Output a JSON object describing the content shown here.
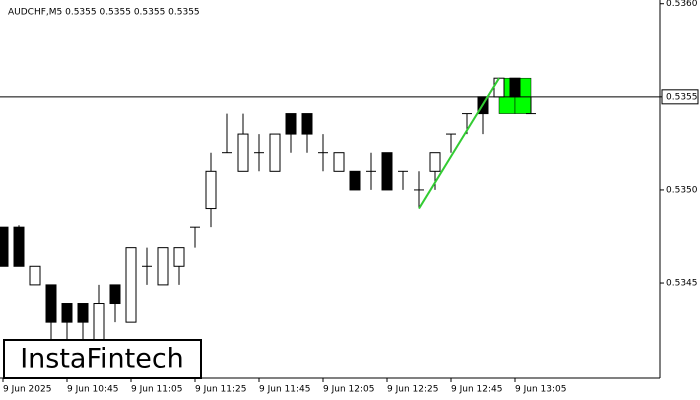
{
  "chart_data": {
    "type": "candlestick",
    "title": "AUDCHF,M5  0.5355 0.5355 0.5355 0.5355",
    "open": [
      0.5348,
      0.5348,
      0.53449,
      0.53449,
      0.53439,
      0.53439,
      0.53419,
      0.53449,
      0.53429,
      0.53459,
      0.53449,
      0.53459,
      0.5348,
      0.5349,
      0.5352,
      0.5351,
      0.5352,
      0.5351,
      0.53541,
      0.53541,
      0.5352,
      0.5351,
      0.5351,
      0.5351,
      0.5352,
      0.5351,
      0.535,
      0.5351,
      0.5353,
      0.53541,
      0.5355,
      0.5355,
      0.5356,
      0.53541
    ],
    "high": [
      0.5348,
      0.53481,
      0.53459,
      0.53449,
      0.53439,
      0.53439,
      0.53449,
      0.53449,
      0.53469,
      0.53469,
      0.53469,
      0.53469,
      0.5348,
      0.5352,
      0.53541,
      0.53541,
      0.5353,
      0.5353,
      0.53541,
      0.53541,
      0.5353,
      0.5352,
      0.5351,
      0.5352,
      0.5352,
      0.5351,
      0.5351,
      0.5352,
      0.5353,
      0.53541,
      0.5355,
      0.5356,
      0.5356,
      0.5355
    ],
    "low": [
      0.53459,
      0.53459,
      0.53449,
      0.53419,
      0.53419,
      0.53419,
      0.53419,
      0.53429,
      0.53429,
      0.53449,
      0.53449,
      0.53449,
      0.53469,
      0.5348,
      0.5352,
      0.5351,
      0.5351,
      0.5351,
      0.5352,
      0.5352,
      0.5351,
      0.5351,
      0.535,
      0.535,
      0.535,
      0.535,
      0.5349,
      0.535,
      0.5352,
      0.5353,
      0.5353,
      0.5355,
      0.5355,
      0.53541
    ],
    "close": [
      0.53459,
      0.53459,
      0.53459,
      0.53429,
      0.53429,
      0.53429,
      0.53439,
      0.53439,
      0.53469,
      0.53459,
      0.53469,
      0.53469,
      0.5348,
      0.5351,
      0.5352,
      0.5353,
      0.5352,
      0.5353,
      0.5353,
      0.5353,
      0.5352,
      0.5352,
      0.535,
      0.5351,
      0.535,
      0.5351,
      0.535,
      0.5352,
      0.5353,
      0.53541,
      0.53541,
      0.5356,
      0.5355,
      0.53541
    ],
    "ylim": [
      0.53399,
      0.53602
    ],
    "yticks": [
      0.5345,
      {
        "value": 0.535,
        "label": "0.5350"
      },
      0.5355,
      {
        "value": 0.536,
        "label": "0.5360"
      }
    ],
    "xticks": [
      {
        "value": 0,
        "label": "9 Jun 2025"
      },
      {
        "value": 4,
        "label": "9 Jun 10:45"
      },
      {
        "value": 8,
        "label": "9 Jun 11:05"
      },
      {
        "value": 12,
        "label": "9 Jun 11:25"
      },
      {
        "value": 16,
        "label": "9 Jun 11:45"
      },
      {
        "value": 20,
        "label": "9 Jun 12:05"
      },
      {
        "value": 24,
        "label": "9 Jun 12:25"
      },
      {
        "value": 28,
        "label": "9 Jun 12:45"
      },
      {
        "value": 32,
        "label": "9 Jun 13:05"
      }
    ],
    "current_price": 0.5355,
    "pattern": {
      "color": "#00ff00",
      "line_color": "#33cc33",
      "from_index": 26,
      "from_price": 0.5349,
      "to_index": 31,
      "to_price": 0.5356,
      "box_start": 31,
      "box_mid": 32,
      "box_end": 33,
      "box_top": 0.5356,
      "box_bottom": 0.53541
    },
    "logo": "InstaFintech"
  }
}
